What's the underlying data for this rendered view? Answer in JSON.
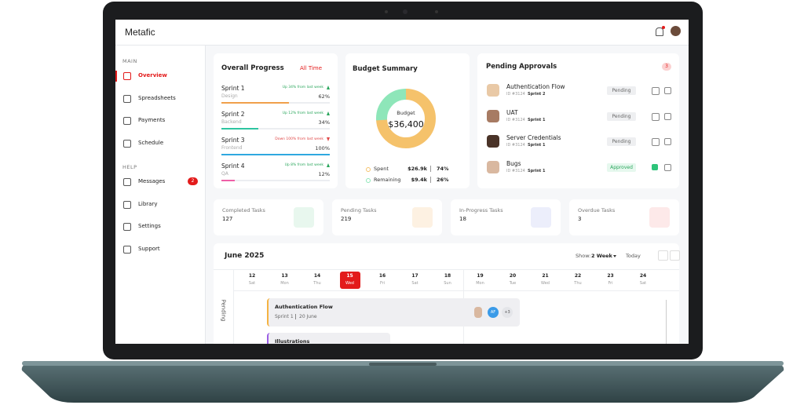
{
  "brand": "Metafic",
  "sidebar": {
    "sections": [
      {
        "title": "MAIN",
        "items": [
          "Overview",
          "Spreadsheets",
          "Payments",
          "Schedule"
        ]
      },
      {
        "title": "HELP",
        "items": [
          "Messages",
          "Library",
          "Settings",
          "Support"
        ]
      }
    ],
    "active": "Overview",
    "messages_badge": "2"
  },
  "progress": {
    "title": "Overall Progress",
    "filter": "All Time",
    "sprints": [
      {
        "name": "Sprint 1",
        "team": "Design",
        "trend": "Up 34% from last week",
        "percent": "62%",
        "color": "#f0a04b"
      },
      {
        "name": "Sprint 2",
        "team": "Backend",
        "trend": "Up 12% from last week",
        "percent": "34%",
        "color": "#2ec4a0"
      },
      {
        "name": "Sprint 3",
        "team": "Frontend",
        "trend": "Down 100% from last week",
        "percent": "100%",
        "color": "#2fa8e0"
      },
      {
        "name": "Sprint 4",
        "team": "QA",
        "trend": "Up 8% from last week",
        "percent": "12%",
        "color": "#ef5fa7"
      }
    ]
  },
  "budget": {
    "title": "Budget Summary",
    "center_label": "Budget",
    "total": "$36,400",
    "legend": [
      {
        "name": "Spent",
        "amount": "$26.9k",
        "percent": "74%",
        "color": "#f5c26b"
      },
      {
        "name": "Remaining",
        "amount": "$9.4k",
        "percent": "26%",
        "color": "#8ee6b9"
      }
    ]
  },
  "approvals": {
    "title": "Pending Approvals",
    "count": "3",
    "items": [
      {
        "title": "Authentication Flow",
        "id": "ID #3124",
        "sprint": "Sprint 2",
        "status": "Pending"
      },
      {
        "title": "UAT",
        "id": "ID #3124",
        "sprint": "Sprint 1",
        "status": "Pending"
      },
      {
        "title": "Server Credentials",
        "id": "ID #3124",
        "sprint": "Sprint 1",
        "status": "Pending"
      },
      {
        "title": "Bugs",
        "id": "ID #3124",
        "sprint": "Sprint 1",
        "status": "Approved"
      }
    ]
  },
  "stats": [
    {
      "label": "Completed Tasks",
      "value": "127",
      "color": "#e8f7ee"
    },
    {
      "label": "Pending Tasks",
      "value": "219",
      "color": "#fdf1e2"
    },
    {
      "label": "In-Progress Tasks",
      "value": "18",
      "color": "#eceefb"
    },
    {
      "label": "Overdue Tasks",
      "value": "3",
      "color": "#fde9e9"
    }
  ],
  "calendar": {
    "month": "June 2025",
    "show_label": "Show:",
    "range": "2 Week",
    "today": "Today",
    "days": [
      {
        "date": "12",
        "day": "Sat"
      },
      {
        "date": "13",
        "day": "Mon"
      },
      {
        "date": "14",
        "day": "Thu"
      },
      {
        "date": "15",
        "day": "Wed",
        "selected": true
      },
      {
        "date": "16",
        "day": "Fri"
      },
      {
        "date": "17",
        "day": "Sat"
      },
      {
        "date": "18",
        "day": "Sun"
      },
      {
        "date": "19",
        "day": "Mon"
      },
      {
        "date": "20",
        "day": "Tue"
      },
      {
        "date": "21",
        "day": "Wed"
      },
      {
        "date": "22",
        "day": "Thu"
      },
      {
        "date": "23",
        "day": "Fri"
      },
      {
        "date": "24",
        "day": "Sat"
      }
    ],
    "row_label": "Pending",
    "tasks": [
      {
        "title": "Authentication Flow",
        "sprint": "Sprint 1",
        "date": "20 June",
        "avatar": "AF",
        "more": "+3",
        "color": "#f5b342"
      },
      {
        "title": "Illustrations",
        "color": "#9b5de5"
      }
    ]
  }
}
